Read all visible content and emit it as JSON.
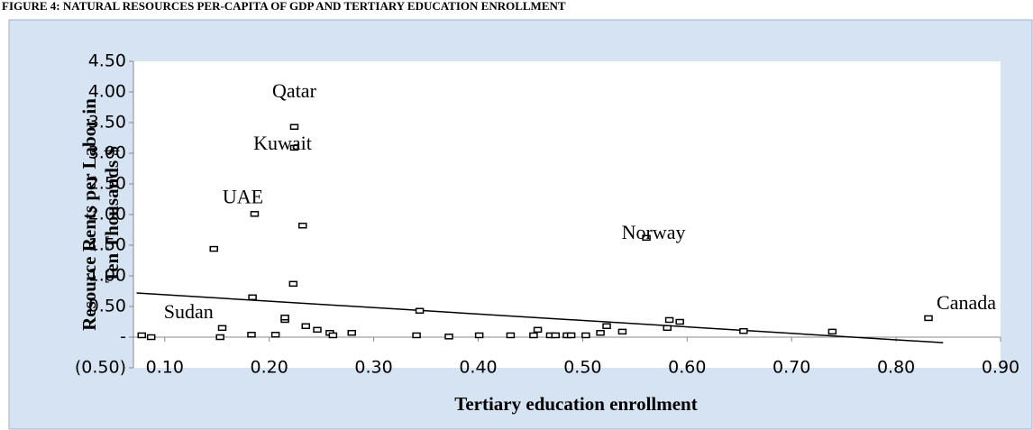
{
  "chart_data": {
    "type": "scatter",
    "title": "FIGURE 4: NATURAL RESOURCES PER-CAPITA OF GDP AND TERTIARY EDUCATION ENROLLMENT",
    "x_label": "Tertiary education enrollment",
    "y_label": [
      "Resource Rents per Labor in",
      "Ten Thousands $"
    ],
    "color": "#000000",
    "x": [
      0.078,
      0.087,
      0.147,
      0.155,
      0.153,
      0.186,
      0.184,
      0.183,
      0.206,
      0.215,
      0.215,
      0.224,
      0.224,
      0.223,
      0.232,
      0.235,
      0.246,
      0.258,
      0.261,
      0.279,
      0.341,
      0.344,
      0.372,
      0.401,
      0.431,
      0.453,
      0.457,
      0.469,
      0.474,
      0.485,
      0.489,
      0.503,
      0.517,
      0.523,
      0.538,
      0.561,
      0.581,
      0.583,
      0.593,
      0.654,
      0.739,
      0.831
    ],
    "y": [
      0.03,
      0,
      1.44,
      0.15,
      0,
      2.01,
      0.65,
      0.04,
      0.04,
      0.28,
      0.32,
      3.43,
      3.09,
      0.87,
      1.82,
      0.18,
      0.12,
      0.07,
      0.03,
      0.07,
      0.03,
      0.43,
      0.01,
      0.03,
      0.03,
      0.03,
      0.12,
      0.03,
      0.03,
      0.03,
      0.03,
      0.03,
      0.07,
      0.18,
      0.09,
      1.62,
      0.15,
      0.28,
      0.25,
      0.1,
      0.09,
      0.31
    ],
    "labels": [
      "Sudan",
      null,
      null,
      null,
      null,
      "UAE",
      null,
      null,
      null,
      null,
      null,
      "Qatar",
      "Kuwait",
      null,
      null,
      null,
      null,
      null,
      null,
      null,
      null,
      null,
      null,
      null,
      null,
      null,
      null,
      null,
      null,
      null,
      null,
      null,
      null,
      null,
      null,
      "Norway",
      null,
      null,
      null,
      null,
      null,
      "Canada"
    ],
    "trendline": {
      "x": [
        0.073,
        0.845
      ],
      "y": [
        0.72,
        -0.09
      ]
    },
    "xlim": [
      0.07,
      0.9
    ],
    "ylim": [
      -0.5,
      4.5
    ],
    "xticks": [
      {
        "value": 0.1,
        "label": "0.10"
      },
      {
        "value": 0.2,
        "label": "0.20"
      },
      {
        "value": 0.3,
        "label": "0.30"
      },
      {
        "value": 0.4,
        "label": "0.40"
      },
      {
        "value": 0.5,
        "label": "0.50"
      },
      {
        "value": 0.6,
        "label": "0.60"
      },
      {
        "value": 0.7,
        "label": "0.70"
      },
      {
        "value": 0.8,
        "label": "0.80"
      },
      {
        "value": 0.9,
        "label": "0.90"
      }
    ],
    "yticks": [
      {
        "value": -0.5,
        "label": "(0.50)"
      },
      {
        "value": 0,
        "label": "-"
      },
      {
        "value": 0.5,
        "label": "0.50"
      },
      {
        "value": 1,
        "label": "1.00"
      },
      {
        "value": 1.5,
        "label": "1.50"
      },
      {
        "value": 2,
        "label": "2.00"
      },
      {
        "value": 2.5,
        "label": "2.50"
      },
      {
        "value": 3,
        "label": "3.00"
      },
      {
        "value": 3.5,
        "label": "3.50"
      },
      {
        "value": 4,
        "label": "4.00"
      },
      {
        "value": 4.5,
        "label": "4.50"
      }
    ],
    "grid": false
  }
}
